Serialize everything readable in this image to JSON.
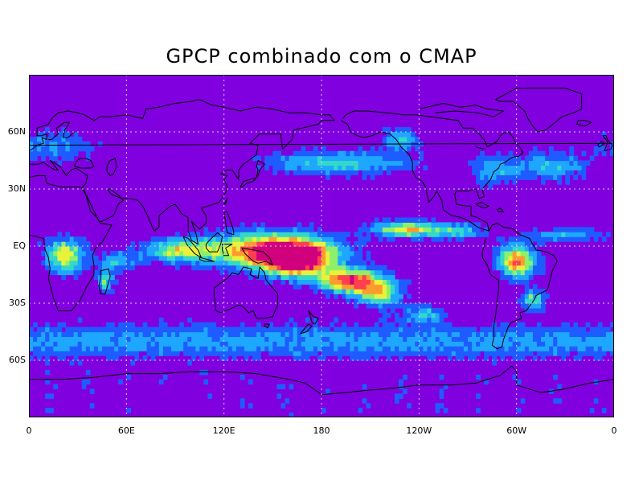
{
  "title": "GPCP combinado com o CMAP",
  "lat_ticks": [
    {
      "label": "60N",
      "lat": 60
    },
    {
      "label": "30N",
      "lat": 30
    },
    {
      "label": "EQ",
      "lat": 0
    },
    {
      "label": "30S",
      "lat": -30
    },
    {
      "label": "60S",
      "lat": -60
    }
  ],
  "lon_ticks": [
    {
      "label": "0",
      "lon": 0
    },
    {
      "label": "60E",
      "lon": 60
    },
    {
      "label": "120E",
      "lon": 120
    },
    {
      "label": "180",
      "lon": 180
    },
    {
      "label": "120W",
      "lon": 240
    },
    {
      "label": "60W",
      "lon": 300
    },
    {
      "label": "0",
      "lon": 360
    }
  ],
  "extent": {
    "lon": [
      0,
      360
    ],
    "lat": [
      -90,
      90
    ]
  },
  "colors": {
    "background": "#8000e0",
    "levels": [
      "#8000e0",
      "#1f5cff",
      "#1ea7ff",
      "#33d9c8",
      "#8ef06a",
      "#e8f23a",
      "#ff9b2e",
      "#ff3f4f",
      "#d1007d"
    ],
    "gridline": "#d8c8ff",
    "coast": "#000000"
  }
}
